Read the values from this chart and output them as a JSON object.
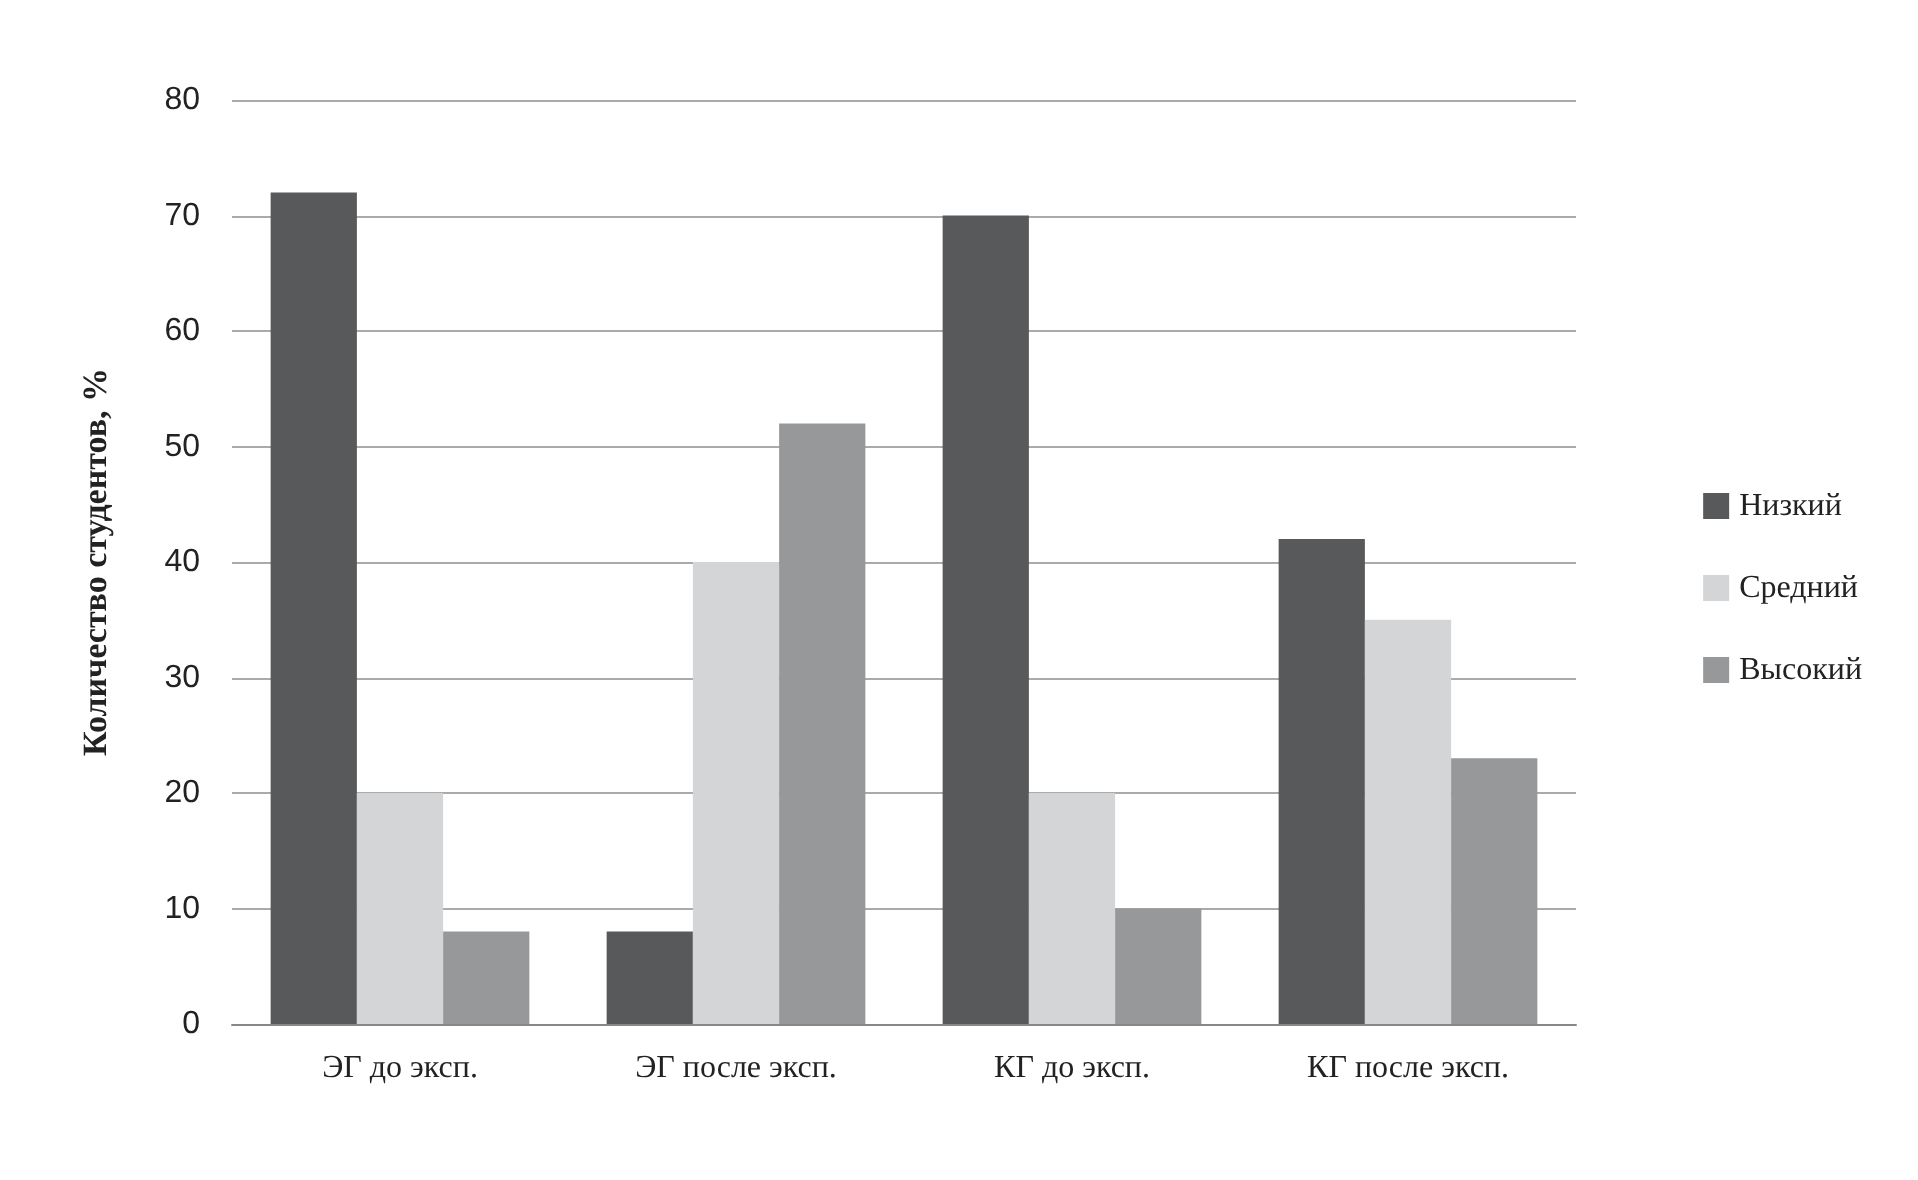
{
  "chart_data": {
    "type": "bar",
    "ylabel": "Количество студентов, %",
    "categories": [
      "ЭГ до эксп.",
      "ЭГ после эксп.",
      "КГ до эксп.",
      "КГ после эксп."
    ],
    "series": [
      {
        "name": "Низкий",
        "color": "#58595b",
        "values": [
          72,
          8,
          70,
          42
        ]
      },
      {
        "name": "Средний",
        "color": "#d4d5d6",
        "values": [
          20,
          40,
          20,
          35
        ]
      },
      {
        "name": "Высокий",
        "color": "#97989a",
        "values": [
          8,
          52,
          10,
          23
        ]
      }
    ],
    "ylim": [
      0,
      80
    ],
    "yticks": [
      0,
      10,
      20,
      30,
      40,
      50,
      60,
      70,
      80
    ],
    "grid": "y",
    "legend": "right"
  }
}
